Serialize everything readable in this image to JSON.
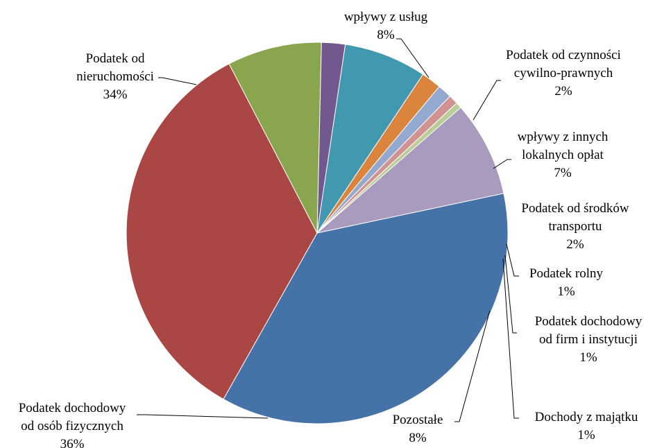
{
  "chart_data": {
    "type": "pie",
    "title": "",
    "slices": [
      {
        "label": "Podatek dochodowy od osób fizycznych",
        "lines": [
          "Podatek dochodowy",
          "od osób fizycznych"
        ],
        "pct_label": "36%",
        "value": 36.5,
        "color": "#4572A7"
      },
      {
        "label": "Podatek od nieruchomości",
        "lines": [
          "Podatek od",
          "nieruchomości"
        ],
        "pct_label": "34%",
        "value": 34.2,
        "color": "#AA4643"
      },
      {
        "label": "wpływy z usług",
        "lines": [
          "wpływy z usług"
        ],
        "pct_label": "8%",
        "value": 8.0,
        "color": "#89A54E"
      },
      {
        "label": "Podatek od czynności cywilno-prawnych",
        "lines": [
          "Podatek od czynności",
          "cywilno-prawnych"
        ],
        "pct_label": "2%",
        "value": 2.0,
        "color": "#71588F"
      },
      {
        "label": "wpływy z innych lokalnych opłat",
        "lines": [
          "wpływy z innych",
          "lokalnych opłat"
        ],
        "pct_label": "7%",
        "value": 7.0,
        "color": "#4198AF"
      },
      {
        "label": "Podatek od środków transportu",
        "lines": [
          "Podatek od środków",
          "transportu"
        ],
        "pct_label": "2%",
        "value": 1.7,
        "color": "#DB843D"
      },
      {
        "label": "Podatek rolny",
        "lines": [
          "Podatek rolny"
        ],
        "pct_label": "1%",
        "value": 1.2,
        "color": "#93A9CF"
      },
      {
        "label": "Podatek dochodowy od firm i instytucji",
        "lines": [
          "Podatek dochodowy",
          "od firm i instytucji"
        ],
        "pct_label": "1%",
        "value": 0.8,
        "color": "#D19392"
      },
      {
        "label": "Dochody z majątku",
        "lines": [
          "Dochody z majątku"
        ],
        "pct_label": "1%",
        "value": 0.5,
        "color": "#B9CD96"
      },
      {
        "label": "Pozostałe",
        "lines": [
          "Pozostałe"
        ],
        "pct_label": "8%",
        "value": 8.1,
        "color": "#A99BBD"
      }
    ]
  }
}
